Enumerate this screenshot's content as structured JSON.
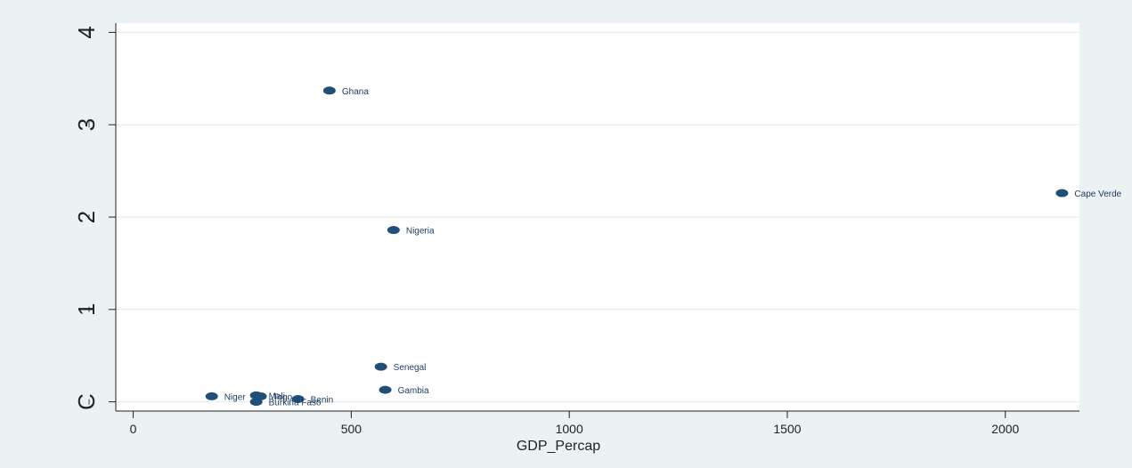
{
  "chart_data": {
    "type": "scatter",
    "xlabel": "GDP_Percap",
    "ylabel": "",
    "xlim": [
      -40,
      2170
    ],
    "ylim": [
      -0.1,
      4.1
    ],
    "xticks": [
      0,
      500,
      1000,
      1500,
      2000
    ],
    "yticks": [
      0,
      1,
      2,
      3,
      4
    ],
    "ytick_labels": [
      "C",
      "1",
      "2",
      "3",
      "4"
    ],
    "grid": true,
    "marker_color": "#1f4e79",
    "points": [
      {
        "x": 450,
        "y": 3.37,
        "label": "Ghana"
      },
      {
        "x": 2130,
        "y": 2.26,
        "label": "Cape Verde"
      },
      {
        "x": 597,
        "y": 1.86,
        "label": "Nigeria"
      },
      {
        "x": 568,
        "y": 0.38,
        "label": "Senegal"
      },
      {
        "x": 578,
        "y": 0.13,
        "label": "Gambia"
      },
      {
        "x": 180,
        "y": 0.06,
        "label": "Niger"
      },
      {
        "x": 282,
        "y": 0.07,
        "label": "Mali"
      },
      {
        "x": 292,
        "y": 0.06,
        "label": "Togo"
      },
      {
        "x": 378,
        "y": 0.03,
        "label": "Benin"
      },
      {
        "x": 282,
        "y": 0.0,
        "label": "Burkina Faso"
      }
    ]
  }
}
